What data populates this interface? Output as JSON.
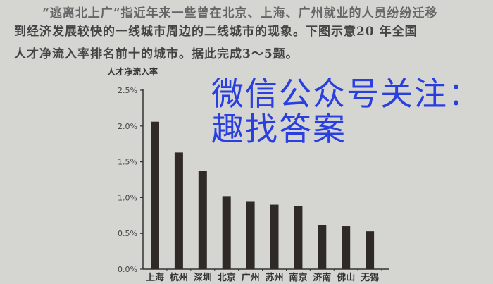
{
  "passage": {
    "line1": "“逃离北上广”指近年来一些曾在北京、上海、广州就业的人员纷纷迁移",
    "line2": "到经济发展较快的一线城市周边的二线城市的现象。下图示意20  年全国",
    "line3": "人才净流入率排名前十的城市。据此完成3～5题。"
  },
  "watermark": "微信公众号关注：趣找答案",
  "colors": {
    "bar": "#2f2a28",
    "watermark": "#2a3fe0",
    "background": "#d5d5d1"
  },
  "chart_data": {
    "type": "bar",
    "title": "",
    "ylabel": "人才净流入率",
    "xlabel": "",
    "categories": [
      "上海",
      "杭州",
      "深圳",
      "北京",
      "广州",
      "苏州",
      "南京",
      "济南",
      "佛山",
      "无锡"
    ],
    "values": [
      2.06,
      1.63,
      1.37,
      1.02,
      0.95,
      0.9,
      0.88,
      0.62,
      0.6,
      0.53
    ],
    "unit": "%",
    "ylim": [
      0,
      2.5
    ],
    "yticks": [
      "0.0%",
      "0.5%",
      "1.0%",
      "1.5%",
      "2.0%",
      "2.5%"
    ],
    "grid": false
  }
}
